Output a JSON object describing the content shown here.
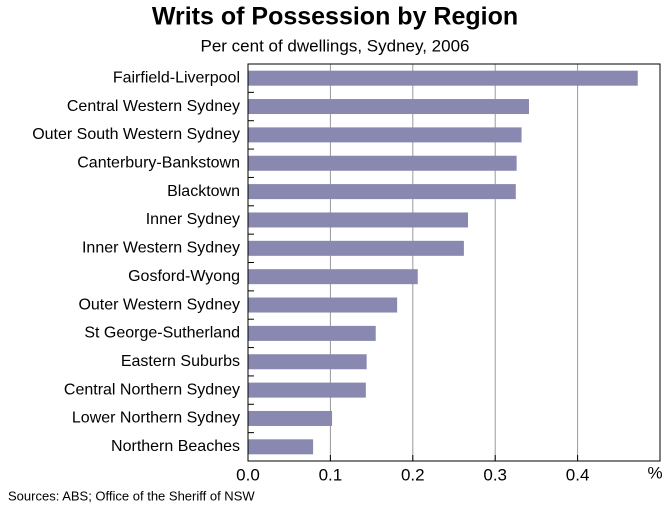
{
  "chart_data": {
    "type": "hbar",
    "title": "Writs of Possession by Region",
    "subtitle": "Per cent of dwellings, Sydney, 2006",
    "categories": [
      "Fairfield-Liverpool",
      "Central Western Sydney",
      "Outer South Western Sydney",
      "Canterbury-Bankstown",
      "Blacktown",
      "Inner Sydney",
      "Inner Western Sydney",
      "Gosford-Wyong",
      "Outer Western Sydney",
      "St George-Sutherland",
      "Eastern Suburbs",
      "Central Northern Sydney",
      "Lower Northern Sydney",
      "Northern Beaches"
    ],
    "values": [
      0.473,
      0.341,
      0.332,
      0.326,
      0.325,
      0.267,
      0.262,
      0.206,
      0.181,
      0.155,
      0.144,
      0.143,
      0.102,
      0.079
    ],
    "color": "#8888b0",
    "xlim": [
      0,
      0.5
    ],
    "xticks": [
      {
        "value": 0,
        "label": "0.0"
      },
      0.1,
      0.2,
      0.3,
      0.4
    ],
    "x_unit": "%",
    "grid": true,
    "source": "Sources: ABS; Office of the Sheriff of NSW"
  }
}
